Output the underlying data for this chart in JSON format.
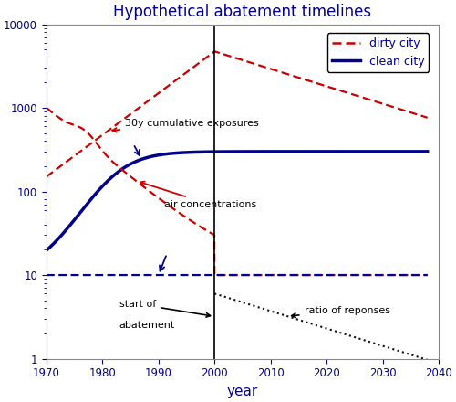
{
  "title": "Hypothetical abatement timelines",
  "xlabel": "year",
  "xlim": [
    1970,
    2040
  ],
  "ylim": [
    1,
    10000
  ],
  "abatement_year": 2000,
  "background_color": "#ffffff",
  "title_color": "#00008B",
  "axis_label_color": "#00008B",
  "tick_color": "#00008B",
  "dirty_color": "#cc0000",
  "clean_color": "#00008B",
  "ratio_color": "#111111",
  "ann_cumulative": "30y cumulative exposures",
  "ann_air": "air concentrations",
  "ann_start_line1": "start of",
  "ann_start_line2": "abatement",
  "ann_ratio": "ratio of reponses"
}
